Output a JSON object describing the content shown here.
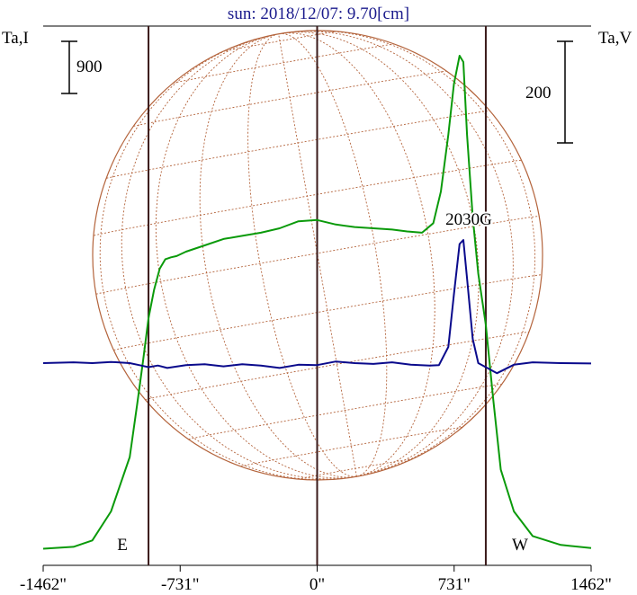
{
  "chart_data": {
    "type": "line",
    "title": "sun: 2018/12/07: 9.70[cm]",
    "left_axis_label": "Ta,I",
    "right_axis_label": "Ta,V",
    "left_scale_bar": "900",
    "right_scale_bar": "200",
    "x_ticks": [
      "-1462\"",
      "-731\"",
      "0\"",
      "731\"",
      "1462\""
    ],
    "x_tick_values": [
      -1462,
      -731,
      0,
      731,
      1462
    ],
    "xlim": [
      -1462,
      1462
    ],
    "limb_labels": {
      "east": "E",
      "west": "W"
    },
    "limb_positions": [
      -900,
      900
    ],
    "source_label": "2030G",
    "grid": false,
    "overlay": "solar disk with heliographic grid",
    "colors": {
      "intensity": "#0a9a0a",
      "polarization": "#0a0a8c",
      "disk": "#b4643c",
      "frame": "#3a1a1a",
      "title": "#1a1a8c"
    },
    "series": [
      {
        "name": "Ta,I",
        "x": [
          -1462,
          -1300,
          -1200,
          -1100,
          -1000,
          -960,
          -930,
          -900,
          -870,
          -840,
          -810,
          -780,
          -750,
          -700,
          -600,
          -500,
          -400,
          -300,
          -200,
          -100,
          0,
          100,
          200,
          300,
          400,
          480,
          560,
          620,
          660,
          700,
          730,
          760,
          780,
          800,
          830,
          860,
          900,
          940,
          980,
          1050,
          1150,
          1300,
          1462
        ],
        "y": [
          50,
          80,
          180,
          640,
          1500,
          2350,
          3000,
          3700,
          4150,
          4480,
          4630,
          4660,
          4680,
          4750,
          4850,
          4950,
          5000,
          5050,
          5120,
          5230,
          5250,
          5180,
          5140,
          5120,
          5100,
          5070,
          5050,
          5200,
          5700,
          6600,
          7400,
          7850,
          7750,
          6600,
          5300,
          4400,
          3600,
          2400,
          1300,
          640,
          250,
          110,
          60
        ]
      },
      {
        "name": "Ta,V",
        "x": [
          -1462,
          -1300,
          -1200,
          -1100,
          -1000,
          -950,
          -900,
          -850,
          -800,
          -700,
          -600,
          -500,
          -400,
          -300,
          -200,
          -100,
          0,
          100,
          200,
          300,
          400,
          500,
          600,
          650,
          700,
          730,
          760,
          780,
          800,
          830,
          860,
          900,
          960,
          1050,
          1150,
          1300,
          1462
        ],
        "y": [
          0,
          2,
          0,
          3,
          0,
          -5,
          -10,
          -6,
          -12,
          -5,
          -3,
          -8,
          -3,
          -6,
          -12,
          -4,
          -5,
          4,
          0,
          -2,
          2,
          -4,
          -6,
          -5,
          40,
          170,
          295,
          305,
          210,
          60,
          0,
          -10,
          -25,
          -4,
          2,
          0,
          -1
        ]
      }
    ]
  }
}
